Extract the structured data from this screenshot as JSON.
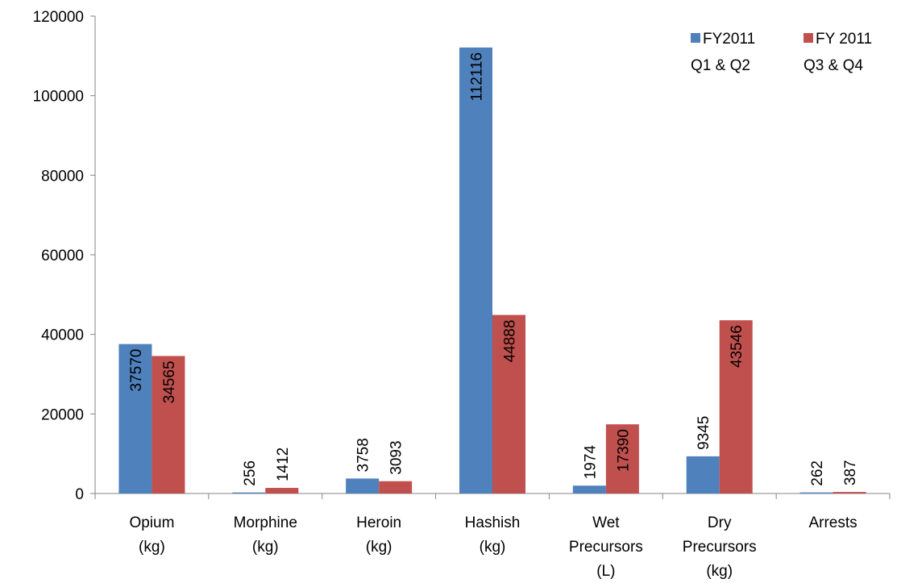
{
  "chart_data": {
    "type": "bar",
    "title": "",
    "xlabel": "",
    "ylabel": "",
    "ylim": [
      0,
      120000
    ],
    "yticks": [
      0,
      20000,
      40000,
      60000,
      80000,
      100000,
      120000
    ],
    "grid": false,
    "legend_position": "top-right",
    "categories": [
      [
        "Opium",
        "(kg)"
      ],
      [
        "Morphine",
        "(kg)"
      ],
      [
        "Heroin",
        "(kg)"
      ],
      [
        "Hashish",
        "(kg)"
      ],
      [
        "Wet",
        "Precursors",
        "(L)"
      ],
      [
        "Dry",
        "Precursors",
        "(kg)"
      ],
      [
        "Arrests"
      ]
    ],
    "series": [
      {
        "name": [
          "FY2011",
          "Q1 & Q2"
        ],
        "color": "#4f81bd",
        "values": [
          37570,
          256,
          3758,
          112116,
          1974,
          9345,
          262
        ]
      },
      {
        "name": [
          "FY 2011",
          "Q3 & Q4"
        ],
        "color": "#c0504d",
        "values": [
          34565,
          1412,
          3093,
          44888,
          17390,
          43546,
          387
        ]
      }
    ]
  }
}
